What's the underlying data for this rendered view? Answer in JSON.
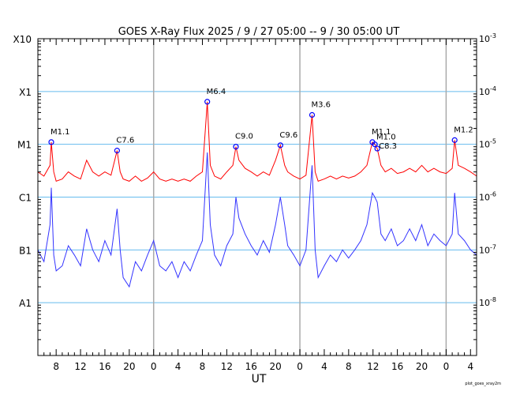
{
  "chart_data": {
    "type": "line",
    "title": "GOES X-Ray Flux   2025  /  9  /  27   05:00 --  9  /  30   05:00   UT",
    "xlabel": "UT",
    "x_unit": "hours since 2025-09-27 05:00 UT",
    "xlim": [
      0,
      72
    ],
    "x_tick_labels": [
      "8",
      "12",
      "16",
      "20",
      "0",
      "4",
      "8",
      "12",
      "16",
      "20",
      "0",
      "4",
      "8",
      "12",
      "16",
      "20",
      "0",
      "4"
    ],
    "x_tick_hours": [
      3,
      7,
      11,
      15,
      19,
      23,
      27,
      31,
      35,
      39,
      43,
      47,
      51,
      55,
      59,
      63,
      67,
      71
    ],
    "day_boundaries": [
      19,
      43,
      67
    ],
    "y_scale": "log",
    "ylim": [
      1e-09,
      0.001
    ],
    "left_tick_labels": [
      {
        "label": "X10",
        "value": 0.001
      },
      {
        "label": "X1",
        "value": 0.0001
      },
      {
        "label": "M1",
        "value": 1e-05
      },
      {
        "label": "C1",
        "value": 1e-06
      },
      {
        "label": "B1",
        "value": 1e-07
      },
      {
        "label": "A1",
        "value": 1e-08
      }
    ],
    "right_tick_labels": [
      {
        "label": "10",
        "exp": "-3",
        "value": 0.001
      },
      {
        "label": "10",
        "exp": "-4",
        "value": 0.0001
      },
      {
        "label": "10",
        "exp": "-5",
        "value": 1e-05
      },
      {
        "label": "10",
        "exp": "-6",
        "value": 1e-06
      },
      {
        "label": "10",
        "exp": "-7",
        "value": 1e-07
      },
      {
        "label": "10",
        "exp": "-8",
        "value": 1e-08
      }
    ],
    "grid": true,
    "x": [
      0,
      1,
      2,
      2.2,
      2.6,
      3,
      4,
      5,
      6,
      7,
      8,
      9,
      10,
      11,
      12,
      13,
      13.5,
      14,
      15,
      16,
      17,
      18,
      19,
      20,
      21,
      22,
      23,
      24,
      25,
      26,
      27,
      27.8,
      28.3,
      29,
      30,
      31,
      32,
      32.5,
      33,
      34,
      35,
      36,
      37,
      38,
      39,
      39.8,
      40.5,
      41,
      42,
      43,
      44,
      45,
      45.5,
      46,
      47,
      48,
      49,
      50,
      51,
      52,
      53,
      54,
      54.9,
      55.3,
      55.7,
      56.3,
      57,
      58,
      59,
      60,
      61,
      62,
      63,
      64,
      65,
      66,
      67,
      68,
      68.4,
      69,
      70,
      71,
      72
    ],
    "series": [
      {
        "color": "#ff0000",
        "values": [
          3e-06,
          2.5e-06,
          4e-06,
          1.1e-05,
          3e-06,
          2e-06,
          2.2e-06,
          3e-06,
          2.5e-06,
          2.2e-06,
          5e-06,
          3e-06,
          2.5e-06,
          3e-06,
          2.6e-06,
          7.6e-06,
          3e-06,
          2.2e-06,
          2e-06,
          2.5e-06,
          2e-06,
          2.3e-06,
          3e-06,
          2.2e-06,
          2e-06,
          2.2e-06,
          2e-06,
          2.2e-06,
          2e-06,
          2.5e-06,
          3e-06,
          6.4e-05,
          4e-06,
          2.5e-06,
          2.2e-06,
          3e-06,
          4e-06,
          9e-06,
          5e-06,
          3.5e-06,
          3e-06,
          2.5e-06,
          3e-06,
          2.6e-06,
          5e-06,
          9.6e-06,
          4e-06,
          3e-06,
          2.5e-06,
          2.2e-06,
          2.6e-06,
          3.6e-05,
          3e-06,
          2e-06,
          2.2e-06,
          2.5e-06,
          2.2e-06,
          2.5e-06,
          2.3e-06,
          2.5e-06,
          3e-06,
          4e-06,
          1.1e-05,
          1e-05,
          8.3e-06,
          4e-06,
          3e-06,
          3.5e-06,
          2.8e-06,
          3e-06,
          3.5e-06,
          3e-06,
          4e-06,
          3e-06,
          3.5e-06,
          3e-06,
          2.8e-06,
          3.5e-06,
          1.2e-05,
          4e-06,
          3.5e-06,
          3e-06,
          2.5e-06
        ]
      },
      {
        "color": "#3333ff",
        "values": [
          1e-07,
          6e-08,
          3e-07,
          1.5e-06,
          8e-08,
          4e-08,
          5e-08,
          1.2e-07,
          8e-08,
          5e-08,
          2.5e-07,
          1e-07,
          6e-08,
          1.5e-07,
          8e-08,
          6e-07,
          1e-07,
          3e-08,
          2e-08,
          6e-08,
          4e-08,
          8e-08,
          1.5e-07,
          5e-08,
          4e-08,
          6e-08,
          3e-08,
          6e-08,
          4e-08,
          8e-08,
          1.5e-07,
          7e-06,
          3e-07,
          8e-08,
          5e-08,
          1.2e-07,
          2e-07,
          1e-06,
          4e-07,
          2e-07,
          1.2e-07,
          8e-08,
          1.5e-07,
          9e-08,
          3e-07,
          1e-06,
          3e-07,
          1.2e-07,
          8e-08,
          5e-08,
          1e-07,
          4e-06,
          1e-07,
          3e-08,
          5e-08,
          8e-08,
          6e-08,
          1e-07,
          7e-08,
          1e-07,
          1.5e-07,
          3e-07,
          1.2e-06,
          1e-06,
          8e-07,
          2e-07,
          1.5e-07,
          2.5e-07,
          1.2e-07,
          1.5e-07,
          2.5e-07,
          1.5e-07,
          3e-07,
          1.2e-07,
          2e-07,
          1.5e-07,
          1.2e-07,
          2e-07,
          1.2e-06,
          2e-07,
          1.5e-07,
          1e-07,
          8e-08
        ]
      }
    ],
    "flares": [
      {
        "label": "M1.1",
        "x": 2.2,
        "value": 1.1e-05
      },
      {
        "label": "C7.6",
        "x": 13,
        "value": 7.6e-06
      },
      {
        "label": "M6.4",
        "x": 27.8,
        "value": 6.4e-05
      },
      {
        "label": "C9.0",
        "x": 32.5,
        "value": 9e-06
      },
      {
        "label": "C9.6",
        "x": 39.8,
        "value": 9.6e-06
      },
      {
        "label": "M3.6",
        "x": 45,
        "value": 3.6e-05
      },
      {
        "label": "M1.1",
        "x": 54.9,
        "value": 1.1e-05
      },
      {
        "label": "M1.0",
        "x": 55.3,
        "value": 1e-05
      },
      {
        "label": "C8.3",
        "x": 55.7,
        "value": 8.3e-06
      },
      {
        "label": "M1.2",
        "x": 68.4,
        "value": 1.2e-05
      }
    ]
  },
  "footer": "plot_goes_xray2m"
}
